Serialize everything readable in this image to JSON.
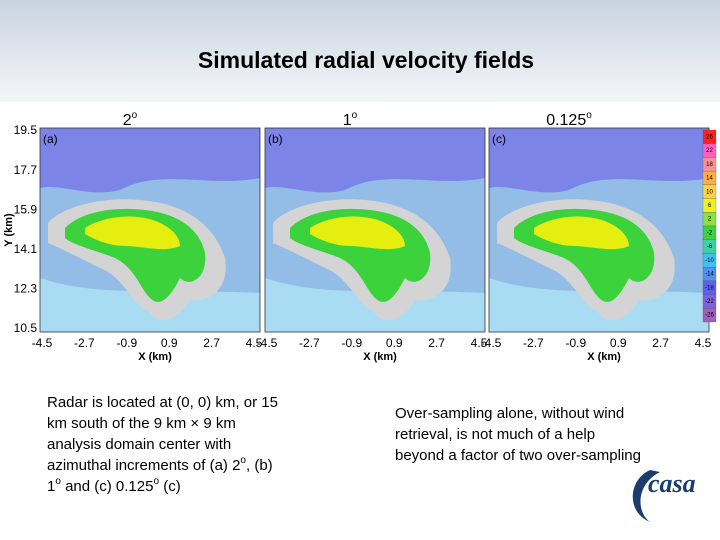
{
  "header": {
    "title": "Simulated radial velocity fields"
  },
  "panels": [
    {
      "heading": "2",
      "heading_sup": "o",
      "label": "(a)"
    },
    {
      "heading": "1",
      "heading_sup": "o",
      "label": "(b)"
    },
    {
      "heading": "0.125",
      "heading_sup": "o",
      "label": "(c)"
    }
  ],
  "y_axis": {
    "label": "Y (km)",
    "ticks": [
      "19.5",
      "17.7",
      "15.9",
      "14.1",
      "12.3",
      "10.5"
    ]
  },
  "x_axis": {
    "label": "X (km)",
    "ticks": [
      "-4.5",
      "-2.7",
      "-0.9",
      "0.9",
      "2.7",
      "4.5"
    ]
  },
  "colorbar": {
    "labels": [
      "26",
      "22",
      "18",
      "14",
      "10",
      "6",
      "2",
      "-2",
      "-6",
      "-10",
      "-14",
      "-18",
      "-22",
      "-26"
    ]
  },
  "left_text": {
    "lines": [
      [
        "Radar is located at (0, 0) km, or 15"
      ],
      [
        "km  south of the 9 km × 9 km"
      ],
      [
        "analysis domain center with"
      ],
      [
        "azimuthal increments of (a) 2",
        "o",
        ", (b)"
      ],
      [
        "1",
        "o",
        " and (c) 0.125",
        "o",
        " (c)"
      ]
    ]
  },
  "right_text": {
    "lines": [
      "Over-sampling alone, without wind",
      "retrieval, is not much of a help",
      "beyond a factor of two over-sampling"
    ]
  },
  "logo": {
    "text": "casa"
  }
}
